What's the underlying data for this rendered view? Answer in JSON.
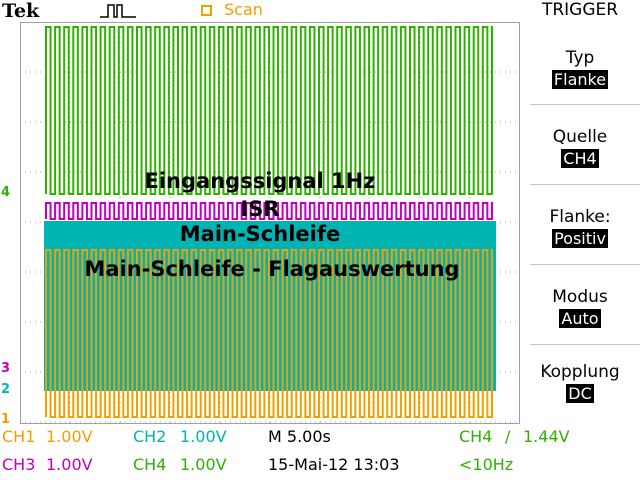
{
  "header": {
    "brand": "Tek",
    "scan_label": "Scan"
  },
  "channel_markers": {
    "ch4": "4",
    "ch3": "3",
    "ch2": "2",
    "ch1": "1"
  },
  "labels": {
    "eingang": "Eingangssignal 1Hz",
    "isr": "ISR",
    "main": "Main-Schleife",
    "flag": "Main-Schleife - Flagauswertung"
  },
  "menu": {
    "title": "TRIGGER",
    "items": [
      {
        "label": "Typ",
        "value": "Flanke"
      },
      {
        "label": "Quelle",
        "value": "CH4"
      },
      {
        "label": "Flanke:",
        "value": "Positiv"
      },
      {
        "label": "Modus",
        "value": "Auto"
      },
      {
        "label": "Kopplung",
        "value": "DC"
      }
    ]
  },
  "status": {
    "ch1": "CH1",
    "ch1_scale": "1.00V",
    "ch2": "CH2",
    "ch2_scale": "1.00V",
    "ch3": "CH3",
    "ch3_scale": "1.00V",
    "ch4": "CH4",
    "ch4_scale": "1.00V",
    "timebase": "M 5.00s",
    "date": "15-Mai-12 13:03",
    "trig_src": "CH4",
    "trig_slope": "/",
    "trig_level": "1.44V",
    "freq": "<10Hz"
  },
  "colors": {
    "ch1": "#f0a000",
    "ch2": "#00b4b4",
    "ch3": "#c000c0",
    "ch4": "#30b000",
    "grid": "#a0a0a0"
  }
}
